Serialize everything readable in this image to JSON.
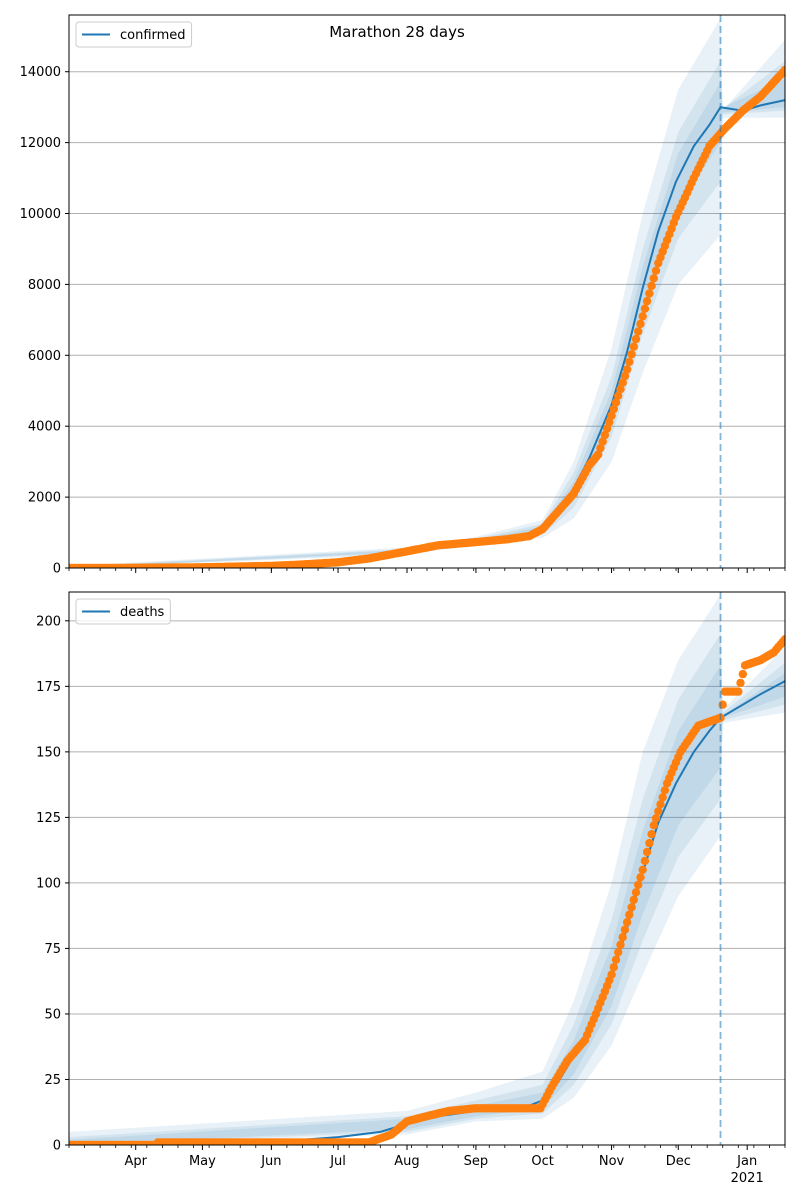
{
  "figure": {
    "title": "Marathon 28 days"
  },
  "colors": {
    "model_line": "#1f77b4",
    "band": "#1f77b4",
    "observed": "#ff7f0e",
    "grid": "#b0b0b0",
    "forecast_marker": "#1f77b4"
  },
  "chart_data": [
    {
      "type": "line",
      "legend": "confirmed",
      "legend_position": "top-left",
      "grid": "y",
      "x_start": "2020-03-02",
      "x_end": "2021-01-18",
      "forecast_start": "2020-12-20",
      "xticks": [
        {
          "label": "Apr",
          "date": "2020-04-01"
        },
        {
          "label": "May",
          "date": "2020-05-01"
        },
        {
          "label": "Jun",
          "date": "2020-06-01"
        },
        {
          "label": "Jul",
          "date": "2020-07-01"
        },
        {
          "label": "Aug",
          "date": "2020-08-01"
        },
        {
          "label": "Sep",
          "date": "2020-09-01"
        },
        {
          "label": "Oct",
          "date": "2020-10-01"
        },
        {
          "label": "Nov",
          "date": "2020-11-01"
        },
        {
          "label": "Dec",
          "date": "2020-12-01"
        },
        {
          "label": "Jan",
          "sublabel": "2021",
          "date": "2021-01-01"
        }
      ],
      "ylim": [
        0,
        15600
      ],
      "yticks": [
        "0",
        "2000",
        "4000",
        "6000",
        "8000",
        "10000",
        "12000",
        "14000"
      ],
      "observed": [
        [
          "2020-03-02",
          0
        ],
        [
          "2020-04-01",
          5
        ],
        [
          "2020-05-01",
          20
        ],
        [
          "2020-06-01",
          60
        ],
        [
          "2020-06-15",
          100
        ],
        [
          "2020-07-01",
          160
        ],
        [
          "2020-07-15",
          270
        ],
        [
          "2020-08-01",
          470
        ],
        [
          "2020-08-15",
          640
        ],
        [
          "2020-09-01",
          730
        ],
        [
          "2020-09-15",
          810
        ],
        [
          "2020-09-25",
          900
        ],
        [
          "2020-10-01",
          1100
        ],
        [
          "2020-10-08",
          1600
        ],
        [
          "2020-10-15",
          2100
        ],
        [
          "2020-10-22",
          2900
        ],
        [
          "2020-10-26",
          3200
        ],
        [
          "2020-11-01",
          4300
        ],
        [
          "2020-11-08",
          5600
        ],
        [
          "2020-11-15",
          7100
        ],
        [
          "2020-11-22",
          8600
        ],
        [
          "2020-11-30",
          9900
        ],
        [
          "2020-12-08",
          11000
        ],
        [
          "2020-12-15",
          11900
        ],
        [
          "2020-12-22",
          12400
        ],
        [
          "2020-12-30",
          12900
        ],
        [
          "2021-01-07",
          13300
        ],
        [
          "2021-01-18",
          14050
        ]
      ],
      "model": [
        [
          "2020-03-02",
          0
        ],
        [
          "2020-04-01",
          5
        ],
        [
          "2020-05-01",
          20
        ],
        [
          "2020-06-01",
          60
        ],
        [
          "2020-06-15",
          100
        ],
        [
          "2020-07-01",
          160
        ],
        [
          "2020-07-15",
          270
        ],
        [
          "2020-08-01",
          480
        ],
        [
          "2020-08-15",
          660
        ],
        [
          "2020-09-01",
          750
        ],
        [
          "2020-09-15",
          830
        ],
        [
          "2020-09-25",
          920
        ],
        [
          "2020-10-01",
          1100
        ],
        [
          "2020-10-08",
          1600
        ],
        [
          "2020-10-15",
          2250
        ],
        [
          "2020-10-22",
          3100
        ],
        [
          "2020-11-01",
          4600
        ],
        [
          "2020-11-08",
          6100
        ],
        [
          "2020-11-15",
          7900
        ],
        [
          "2020-11-22",
          9500
        ],
        [
          "2020-11-30",
          10900
        ],
        [
          "2020-12-08",
          11900
        ],
        [
          "2020-12-15",
          12500
        ],
        [
          "2020-12-20",
          13000
        ],
        [
          "2020-12-30",
          12900
        ],
        [
          "2021-01-07",
          13050
        ],
        [
          "2021-01-18",
          13200
        ]
      ],
      "bands": [
        {
          "lower": [
            [
              "2020-03-02",
              0
            ],
            [
              "2020-08-01",
              380
            ],
            [
              "2020-09-01",
              640
            ],
            [
              "2020-10-01",
              850
            ],
            [
              "2020-10-15",
              1400
            ],
            [
              "2020-11-01",
              3000
            ],
            [
              "2020-11-15",
              5500
            ],
            [
              "2020-12-01",
              8000
            ],
            [
              "2020-12-20",
              9400
            ],
            [
              "2020-12-21",
              12700
            ],
            [
              "2021-01-18",
              12700
            ]
          ],
          "upper": [
            [
              "2020-03-02",
              60
            ],
            [
              "2020-08-01",
              580
            ],
            [
              "2020-09-01",
              880
            ],
            [
              "2020-10-01",
              1350
            ],
            [
              "2020-10-15",
              3000
            ],
            [
              "2020-11-01",
              6200
            ],
            [
              "2020-11-15",
              10000
            ],
            [
              "2020-12-01",
              13500
            ],
            [
              "2020-12-20",
              15500
            ],
            [
              "2020-12-21",
              12900
            ],
            [
              "2021-01-18",
              14900
            ]
          ]
        },
        {
          "lower": [
            [
              "2020-03-02",
              0
            ],
            [
              "2020-08-01",
              420
            ],
            [
              "2020-09-01",
              680
            ],
            [
              "2020-10-01",
              930
            ],
            [
              "2020-10-15",
              1700
            ],
            [
              "2020-11-01",
              3700
            ],
            [
              "2020-11-15",
              6600
            ],
            [
              "2020-12-01",
              9300
            ],
            [
              "2020-12-20",
              10900
            ],
            [
              "2020-12-21",
              12800
            ],
            [
              "2021-01-18",
              12900
            ]
          ],
          "upper": [
            [
              "2020-03-02",
              40
            ],
            [
              "2020-08-01",
              540
            ],
            [
              "2020-09-01",
              830
            ],
            [
              "2020-10-01",
              1250
            ],
            [
              "2020-10-15",
              2700
            ],
            [
              "2020-11-01",
              5400
            ],
            [
              "2020-11-15",
              9000
            ],
            [
              "2020-12-01",
              12300
            ],
            [
              "2020-12-20",
              14300
            ],
            [
              "2020-12-21",
              12950
            ],
            [
              "2021-01-18",
              14300
            ]
          ]
        },
        {
          "lower": [
            [
              "2020-03-02",
              0
            ],
            [
              "2020-08-01",
              450
            ],
            [
              "2020-09-01",
              720
            ],
            [
              "2020-10-01",
              990
            ],
            [
              "2020-10-15",
              1900
            ],
            [
              "2020-11-01",
              4100
            ],
            [
              "2020-11-15",
              7300
            ],
            [
              "2020-12-01",
              10200
            ],
            [
              "2020-12-20",
              12000
            ],
            [
              "2020-12-21",
              12850
            ],
            [
              "2021-01-18",
              13000
            ]
          ],
          "upper": [
            [
              "2020-03-02",
              25
            ],
            [
              "2020-08-01",
              510
            ],
            [
              "2020-09-01",
              790
            ],
            [
              "2020-10-01",
              1180
            ],
            [
              "2020-10-15",
              2450
            ],
            [
              "2020-11-01",
              5000
            ],
            [
              "2020-11-15",
              8500
            ],
            [
              "2020-12-01",
              11700
            ],
            [
              "2020-12-20",
              13700
            ],
            [
              "2020-12-21",
              13000
            ],
            [
              "2021-01-18",
              13800
            ]
          ]
        }
      ]
    },
    {
      "type": "line",
      "legend": "deaths",
      "legend_position": "top-left",
      "grid": "y",
      "x_start": "2020-03-02",
      "x_end": "2021-01-18",
      "forecast_start": "2020-12-20",
      "xticks": [
        {
          "label": "Apr",
          "date": "2020-04-01"
        },
        {
          "label": "May",
          "date": "2020-05-01"
        },
        {
          "label": "Jun",
          "date": "2020-06-01"
        },
        {
          "label": "Jul",
          "date": "2020-07-01"
        },
        {
          "label": "Aug",
          "date": "2020-08-01"
        },
        {
          "label": "Sep",
          "date": "2020-09-01"
        },
        {
          "label": "Oct",
          "date": "2020-10-01"
        },
        {
          "label": "Nov",
          "date": "2020-11-01"
        },
        {
          "label": "Dec",
          "date": "2020-12-01"
        },
        {
          "label": "Jan",
          "sublabel": "2021",
          "date": "2021-01-01"
        }
      ],
      "ylim": [
        0,
        211
      ],
      "yticks": [
        "0",
        "25",
        "50",
        "75",
        "100",
        "125",
        "150",
        "175",
        "200"
      ],
      "observed": [
        [
          "2020-03-02",
          0
        ],
        [
          "2020-04-10",
          0
        ],
        [
          "2020-04-11",
          1
        ],
        [
          "2020-07-15",
          1
        ],
        [
          "2020-07-25",
          4
        ],
        [
          "2020-08-01",
          9
        ],
        [
          "2020-08-10",
          11
        ],
        [
          "2020-08-20",
          13
        ],
        [
          "2020-09-01",
          14
        ],
        [
          "2020-09-30",
          14
        ],
        [
          "2020-10-05",
          22
        ],
        [
          "2020-10-12",
          32
        ],
        [
          "2020-10-20",
          40
        ],
        [
          "2020-10-25",
          50
        ],
        [
          "2020-11-01",
          65
        ],
        [
          "2020-11-08",
          85
        ],
        [
          "2020-11-15",
          105
        ],
        [
          "2020-11-20",
          122
        ],
        [
          "2020-11-26",
          138
        ],
        [
          "2020-12-02",
          150
        ],
        [
          "2020-12-10",
          160
        ],
        [
          "2020-12-20",
          163
        ],
        [
          "2020-12-22",
          173
        ],
        [
          "2020-12-28",
          173
        ],
        [
          "2020-12-31",
          183
        ],
        [
          "2021-01-07",
          185
        ],
        [
          "2021-01-13",
          188
        ],
        [
          "2021-01-18",
          193
        ]
      ],
      "model": [
        [
          "2020-03-02",
          0
        ],
        [
          "2020-05-01",
          1
        ],
        [
          "2020-06-15",
          2
        ],
        [
          "2020-07-01",
          3
        ],
        [
          "2020-07-20",
          5
        ],
        [
          "2020-08-01",
          8
        ],
        [
          "2020-08-15",
          11
        ],
        [
          "2020-09-01",
          13
        ],
        [
          "2020-09-15",
          14
        ],
        [
          "2020-09-25",
          15
        ],
        [
          "2020-10-01",
          17
        ],
        [
          "2020-10-08",
          24
        ],
        [
          "2020-10-15",
          34
        ],
        [
          "2020-10-22",
          45
        ],
        [
          "2020-11-01",
          64
        ],
        [
          "2020-11-08",
          83
        ],
        [
          "2020-11-15",
          104
        ],
        [
          "2020-11-22",
          123
        ],
        [
          "2020-11-30",
          138
        ],
        [
          "2020-12-08",
          150
        ],
        [
          "2020-12-15",
          158
        ],
        [
          "2020-12-20",
          163
        ],
        [
          "2020-12-30",
          168
        ],
        [
          "2021-01-07",
          172
        ],
        [
          "2021-01-18",
          177
        ]
      ],
      "bands": [
        {
          "lower": [
            [
              "2020-03-02",
              0
            ],
            [
              "2020-08-01",
              4
            ],
            [
              "2020-09-01",
              9
            ],
            [
              "2020-10-01",
              10
            ],
            [
              "2020-10-15",
              18
            ],
            [
              "2020-11-01",
              38
            ],
            [
              "2020-11-15",
              65
            ],
            [
              "2020-12-01",
              95
            ],
            [
              "2020-12-20",
              118
            ],
            [
              "2020-12-21",
              161
            ],
            [
              "2021-01-18",
              165
            ]
          ],
          "upper": [
            [
              "2020-03-02",
              5
            ],
            [
              "2020-08-01",
              13
            ],
            [
              "2020-09-01",
              20
            ],
            [
              "2020-10-01",
              28
            ],
            [
              "2020-10-15",
              55
            ],
            [
              "2020-11-01",
              100
            ],
            [
              "2020-11-15",
              150
            ],
            [
              "2020-12-01",
              185
            ],
            [
              "2020-12-20",
              210
            ],
            [
              "2020-12-21",
              166
            ],
            [
              "2021-01-18",
              190
            ]
          ]
        },
        {
          "lower": [
            [
              "2020-03-02",
              0
            ],
            [
              "2020-08-01",
              5
            ],
            [
              "2020-09-01",
              10
            ],
            [
              "2020-10-01",
              12
            ],
            [
              "2020-10-15",
              23
            ],
            [
              "2020-11-01",
              46
            ],
            [
              "2020-11-15",
              78
            ],
            [
              "2020-12-01",
              110
            ],
            [
              "2020-12-20",
              132
            ],
            [
              "2020-12-21",
              162
            ],
            [
              "2021-01-18",
              168
            ]
          ],
          "upper": [
            [
              "2020-03-02",
              3
            ],
            [
              "2020-08-01",
              11
            ],
            [
              "2020-09-01",
              17
            ],
            [
              "2020-10-01",
              23
            ],
            [
              "2020-10-15",
              46
            ],
            [
              "2020-11-01",
              86
            ],
            [
              "2020-11-15",
              132
            ],
            [
              "2020-12-01",
              170
            ],
            [
              "2020-12-20",
              195
            ],
            [
              "2020-12-21",
              165
            ],
            [
              "2021-01-18",
              184
            ]
          ]
        },
        {
          "lower": [
            [
              "2020-03-02",
              0
            ],
            [
              "2020-08-01",
              6
            ],
            [
              "2020-09-01",
              11
            ],
            [
              "2020-10-01",
              14
            ],
            [
              "2020-10-15",
              27
            ],
            [
              "2020-11-01",
              53
            ],
            [
              "2020-11-15",
              88
            ],
            [
              "2020-12-01",
              122
            ],
            [
              "2020-12-20",
              144
            ],
            [
              "2020-12-21",
              163
            ],
            [
              "2021-01-18",
              171
            ]
          ],
          "upper": [
            [
              "2020-03-02",
              2
            ],
            [
              "2020-08-01",
              10
            ],
            [
              "2020-09-01",
              15
            ],
            [
              "2020-10-01",
              20
            ],
            [
              "2020-10-15",
              40
            ],
            [
              "2020-11-01",
              76
            ],
            [
              "2020-11-15",
              120
            ],
            [
              "2020-12-01",
              158
            ],
            [
              "2020-12-20",
              183
            ],
            [
              "2020-12-21",
              164
            ],
            [
              "2021-01-18",
              180
            ]
          ]
        }
      ]
    }
  ]
}
